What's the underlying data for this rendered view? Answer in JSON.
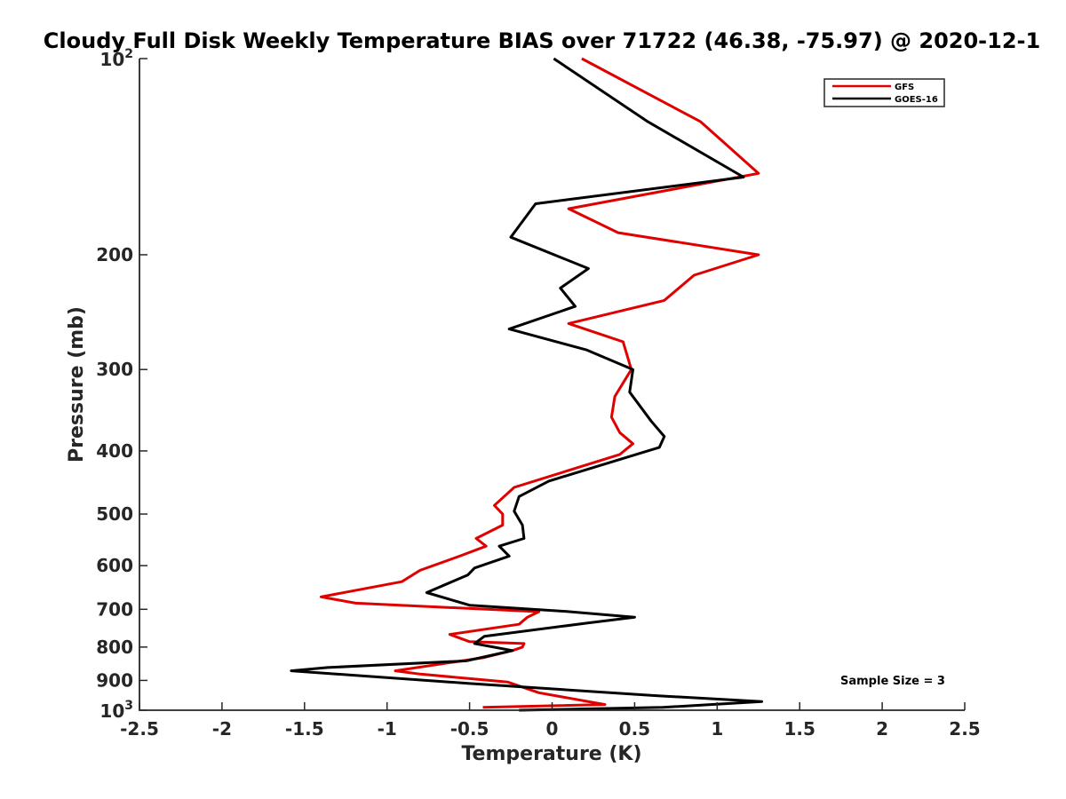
{
  "chart_data": {
    "type": "line",
    "title": "Cloudy Full Disk Weekly Temperature BIAS over 71722 (46.38, -75.97) @ 2020-12-1",
    "xlabel": "Temperature (K)",
    "ylabel": "Pressure (mb)",
    "xlim": [
      -2.5,
      2.5
    ],
    "ylim": [
      1000,
      100
    ],
    "y_scale": "log",
    "y_reversed": true,
    "x_ticks": [
      "-2.5",
      "-2",
      "-1.5",
      "-1",
      "-0.5",
      "0",
      "0.5",
      "1",
      "1.5",
      "2",
      "2.5"
    ],
    "y_ticks": [
      {
        "value": 100,
        "base": "10",
        "exp": "2"
      },
      {
        "value": 200,
        "label": "200"
      },
      {
        "value": 300,
        "label": "300"
      },
      {
        "value": 400,
        "label": "400"
      },
      {
        "value": 500,
        "label": "500"
      },
      {
        "value": 600,
        "label": "600"
      },
      {
        "value": 700,
        "label": "700"
      },
      {
        "value": 800,
        "label": "800"
      },
      {
        "value": 900,
        "label": "900"
      },
      {
        "value": 1000,
        "base": "10",
        "exp": "3"
      }
    ],
    "legend_position": "top-right",
    "grid": false,
    "annotation": "Sample Size = 3",
    "series": [
      {
        "name": "GFS",
        "color": "#e00000",
        "points": [
          [
            0.18,
            100
          ],
          [
            0.9,
            125
          ],
          [
            1.25,
            150
          ],
          [
            0.1,
            170
          ],
          [
            0.4,
            185
          ],
          [
            1.25,
            200
          ],
          [
            0.86,
            215
          ],
          [
            0.68,
            235
          ],
          [
            0.1,
            255
          ],
          [
            0.43,
            272
          ],
          [
            0.48,
            300
          ],
          [
            0.38,
            330
          ],
          [
            0.36,
            355
          ],
          [
            0.41,
            375
          ],
          [
            0.49,
            390
          ],
          [
            0.41,
            405
          ],
          [
            -0.23,
            455
          ],
          [
            -0.35,
            485
          ],
          [
            -0.3,
            500
          ],
          [
            -0.3,
            520
          ],
          [
            -0.46,
            545
          ],
          [
            -0.4,
            560
          ],
          [
            -0.56,
            580
          ],
          [
            -0.8,
            610
          ],
          [
            -0.91,
            635
          ],
          [
            -1.4,
            670
          ],
          [
            -1.19,
            685
          ],
          [
            -0.08,
            706
          ],
          [
            -0.15,
            720
          ],
          [
            -0.2,
            738
          ],
          [
            -0.62,
            765
          ],
          [
            -0.5,
            785
          ],
          [
            -0.17,
            790
          ],
          [
            -0.18,
            800
          ],
          [
            -0.24,
            810
          ],
          [
            -0.41,
            830
          ],
          [
            -0.95,
            870
          ],
          [
            -0.8,
            880
          ],
          [
            -0.27,
            905
          ],
          [
            -0.08,
            940
          ],
          [
            0.32,
            980
          ],
          [
            -0.42,
            990
          ]
        ]
      },
      {
        "name": "GOES-16",
        "color": "#000000",
        "points": [
          [
            0.01,
            100
          ],
          [
            0.58,
            125
          ],
          [
            1.16,
            152
          ],
          [
            -0.1,
            167
          ],
          [
            -0.25,
            188
          ],
          [
            0.22,
            210
          ],
          [
            0.05,
            225
          ],
          [
            0.14,
            240
          ],
          [
            -0.26,
            260
          ],
          [
            0.21,
            280
          ],
          [
            0.49,
            300
          ],
          [
            0.47,
            325
          ],
          [
            0.6,
            360
          ],
          [
            0.68,
            380
          ],
          [
            0.65,
            395
          ],
          [
            -0.02,
            445
          ],
          [
            -0.2,
            470
          ],
          [
            -0.23,
            495
          ],
          [
            -0.18,
            520
          ],
          [
            -0.17,
            545
          ],
          [
            -0.32,
            560
          ],
          [
            -0.26,
            580
          ],
          [
            -0.47,
            605
          ],
          [
            -0.51,
            620
          ],
          [
            -0.76,
            660
          ],
          [
            -0.5,
            690
          ],
          [
            0.08,
            705
          ],
          [
            0.5,
            720
          ],
          [
            0.21,
            735
          ],
          [
            -0.41,
            770
          ],
          [
            -0.47,
            790
          ],
          [
            -0.24,
            810
          ],
          [
            -0.52,
            840
          ],
          [
            -1.36,
            860
          ],
          [
            -1.58,
            870
          ],
          [
            -0.5,
            910
          ],
          [
            0.63,
            950
          ],
          [
            1.27,
            970
          ],
          [
            0.67,
            990
          ],
          [
            -0.2,
            1000
          ]
        ]
      }
    ]
  }
}
